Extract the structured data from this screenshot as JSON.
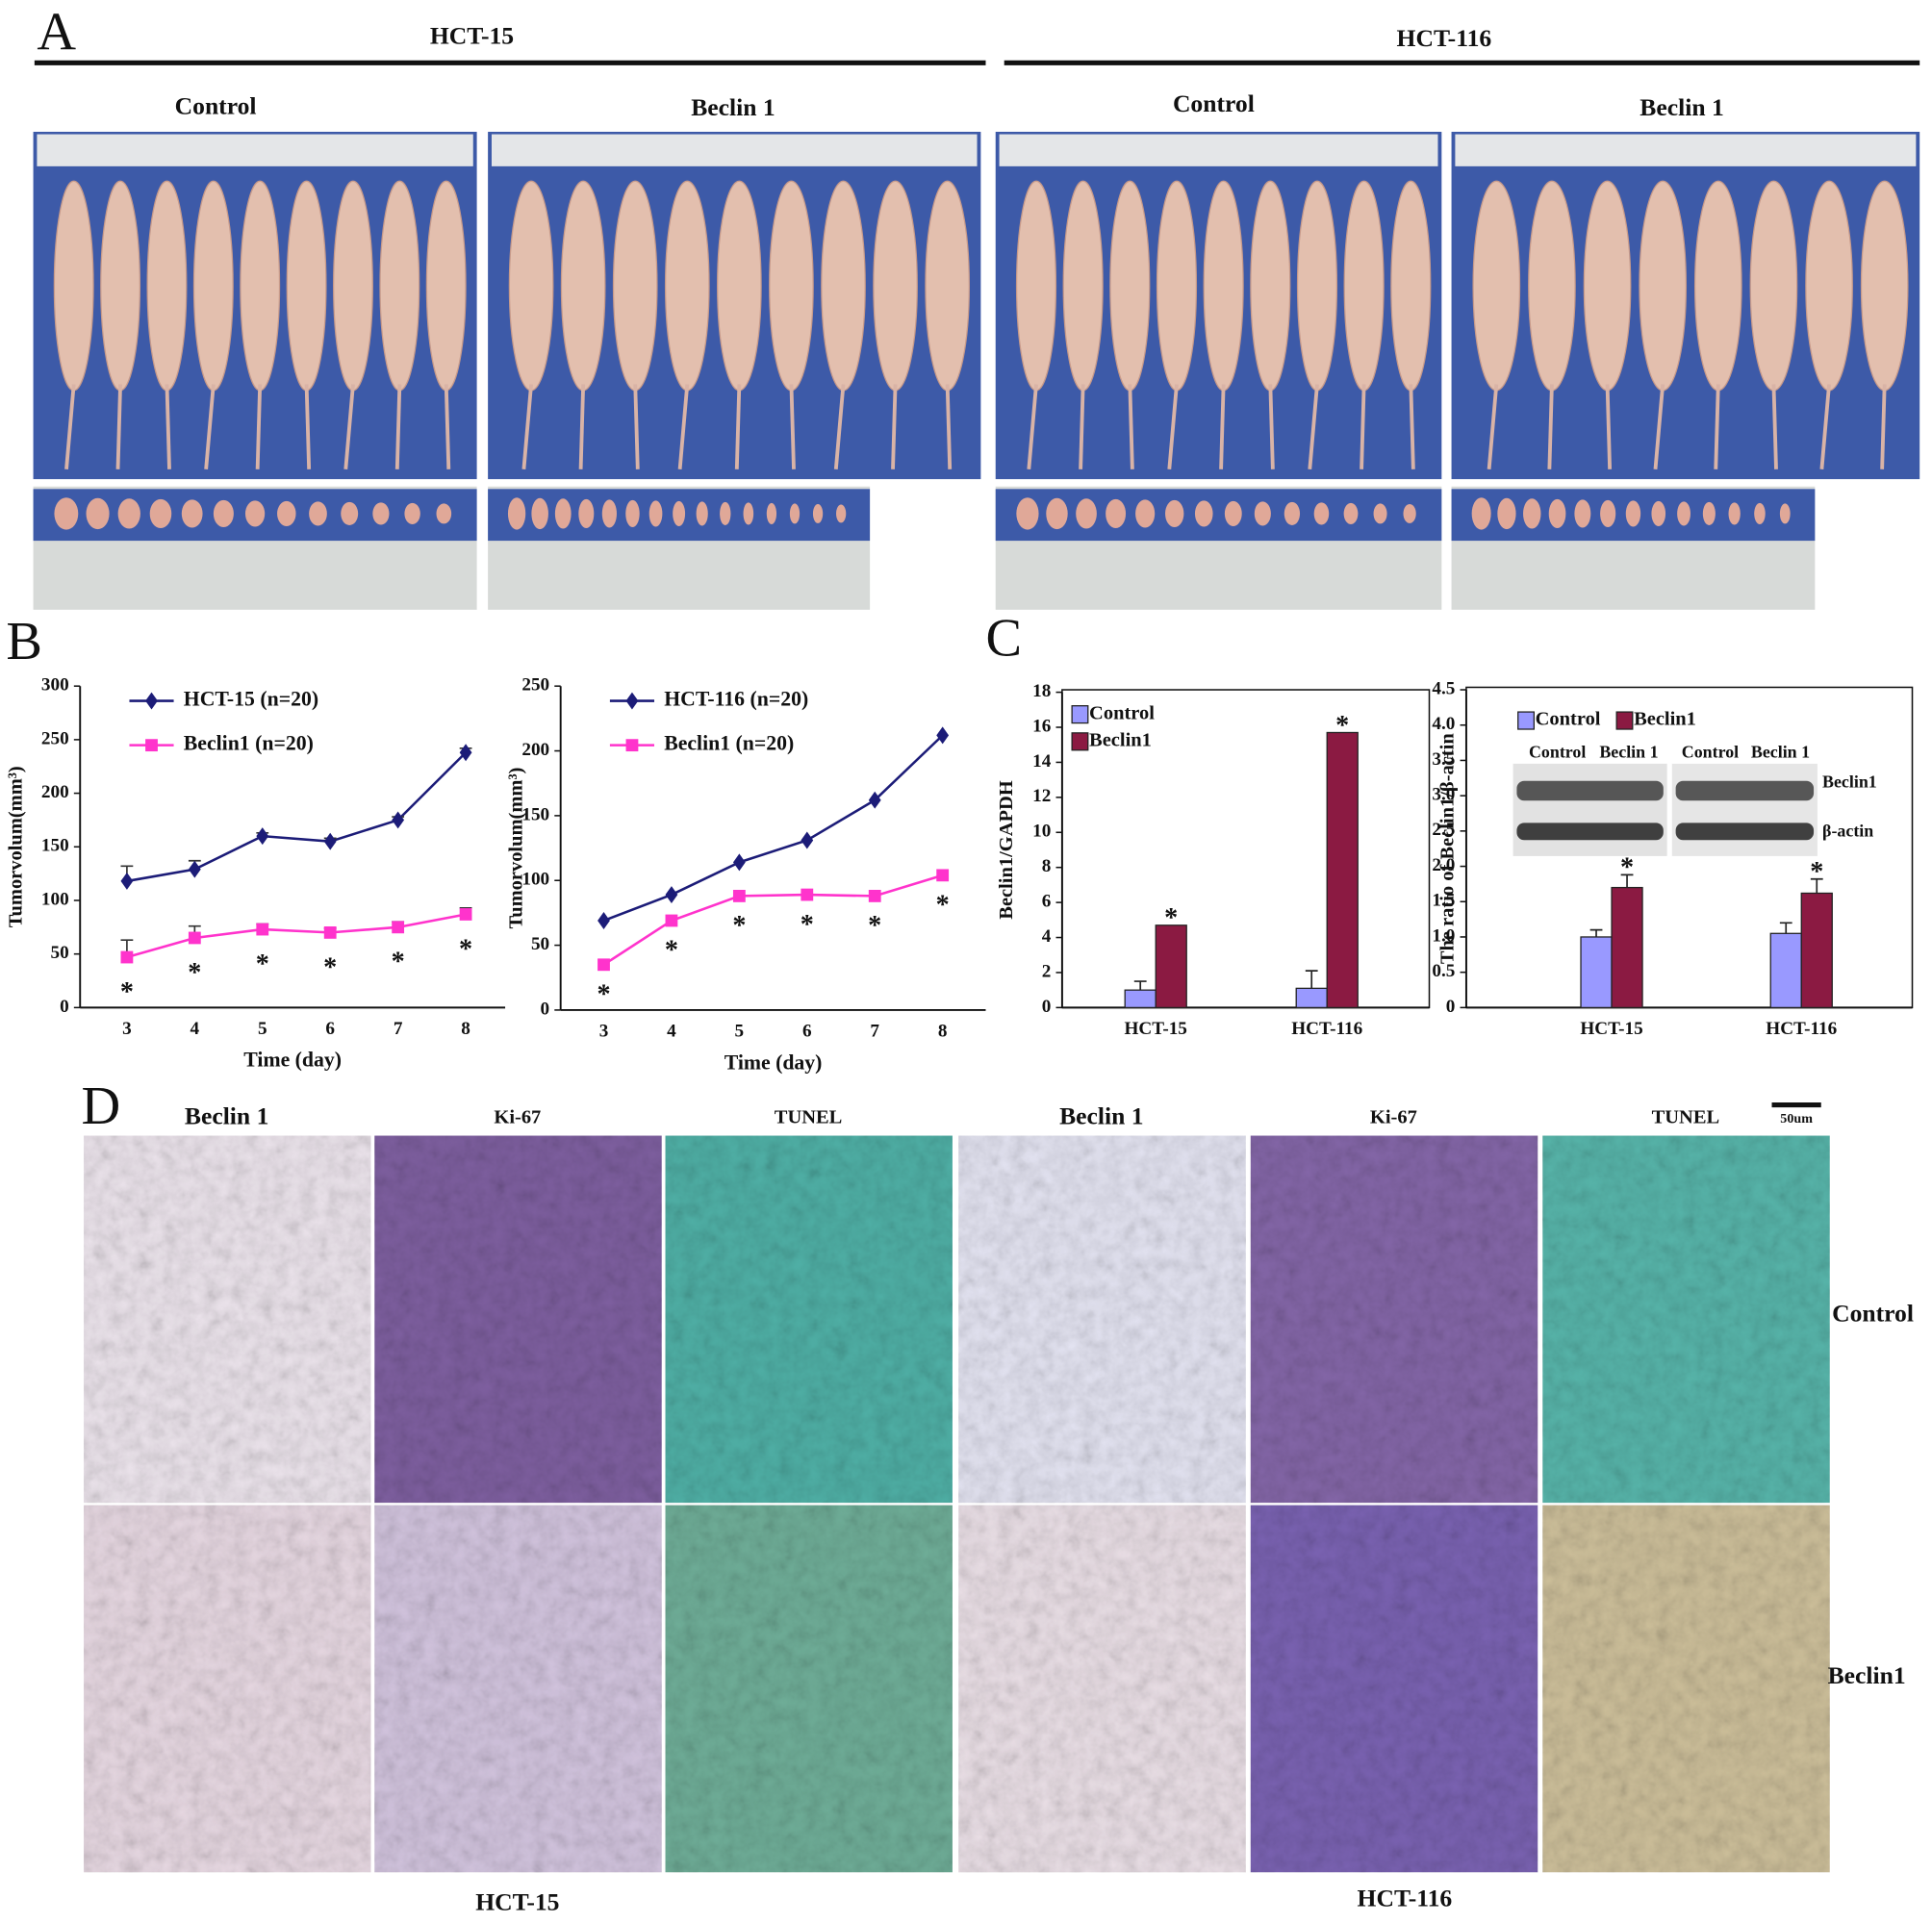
{
  "panel_a": {
    "label": "A",
    "groups": [
      {
        "title": "HCT-15",
        "conditions": [
          "Control",
          "Beclin 1"
        ]
      },
      {
        "title": "HCT-116",
        "conditions": [
          "Control",
          "Beclin 1"
        ]
      }
    ]
  },
  "panel_b": {
    "label": "B"
  },
  "panel_c": {
    "label": "C"
  },
  "panel_d": {
    "label": "D",
    "columns": [
      "Beclin 1",
      "Ki-67",
      "TUNEL",
      "Beclin 1",
      "Ki-67",
      "TUNEL"
    ],
    "rows": [
      "Control",
      "Beclin1"
    ],
    "cell_lines": [
      "HCT-15",
      "HCT-116"
    ],
    "scale_bar": "50um"
  },
  "chart_data": [
    {
      "type": "line",
      "categories": [
        "3",
        "4",
        "5",
        "6",
        "7",
        "8"
      ],
      "x_label": "Time (day)",
      "y_label": "Tumorvolum(mm³)",
      "ylim": [
        0,
        300
      ],
      "yticks": [
        0,
        50,
        100,
        150,
        200,
        250,
        300
      ],
      "legend": "upper left",
      "series": [
        {
          "name": "HCT-15 (n=20)",
          "color": "#1c1c78",
          "marker": "diamond",
          "values": [
            118,
            129,
            160,
            155,
            175,
            238
          ],
          "errors": [
            14,
            8,
            3,
            3,
            3,
            4
          ]
        },
        {
          "name": "Beclin1 (n=20)",
          "color": "#ff33cc",
          "marker": "square",
          "values": [
            47,
            65,
            73,
            70,
            75,
            87
          ],
          "errors": [
            16,
            11,
            5,
            4,
            5,
            6
          ],
          "point_labels": [
            "*",
            "*",
            "*",
            "*",
            "*",
            "*"
          ]
        }
      ]
    },
    {
      "type": "line",
      "categories": [
        "3",
        "4",
        "5",
        "6",
        "7",
        "8"
      ],
      "x_label": "Time (day)",
      "y_label": "Tumorvolum(mm³)",
      "ylim": [
        0,
        250
      ],
      "yticks": [
        0,
        50,
        100,
        150,
        200,
        250
      ],
      "legend": "upper left",
      "series": [
        {
          "name": "HCT-116 (n=20)",
          "color": "#1c1c78",
          "marker": "diamond",
          "values": [
            69,
            89,
            114,
            131,
            162,
            212
          ]
        },
        {
          "name": "Beclin1 (n=20)",
          "color": "#ff33cc",
          "marker": "square",
          "values": [
            35,
            69,
            88,
            89,
            88,
            104
          ],
          "point_labels": [
            "*",
            "*",
            "*",
            "*",
            "*",
            "*"
          ]
        }
      ]
    },
    {
      "type": "bar",
      "categories": [
        "HCT-15",
        "HCT-116"
      ],
      "y_label": "Beclin1/GAPDH",
      "ylim": [
        0,
        18
      ],
      "yticks": [
        0,
        2,
        4,
        6,
        8,
        10,
        12,
        14,
        16,
        18
      ],
      "legend": "upper left",
      "frame": true,
      "series": [
        {
          "name": "Control",
          "color": "#9999ff",
          "values": [
            1.0,
            1.1
          ],
          "errors": [
            0.5,
            1.0
          ]
        },
        {
          "name": "Beclin1",
          "color": "#8b1a42",
          "values": [
            4.7,
            15.7
          ],
          "point_labels": [
            "*",
            "*"
          ]
        }
      ]
    },
    {
      "type": "bar",
      "categories": [
        "HCT-15",
        "HCT-116"
      ],
      "y_label": "The ratio of Beclin1/β-actin",
      "ylim": [
        0,
        4.5
      ],
      "yticks": [
        0,
        0.5,
        {
          "value": 1,
          "label": "1.0"
        },
        1.5,
        {
          "value": 2,
          "label": "2.0"
        },
        2.5,
        {
          "value": 3,
          "label": "3.0"
        },
        3.5,
        {
          "value": 4,
          "label": "4.0"
        },
        4.5
      ],
      "legend": "upper left",
      "frame": true,
      "blot": {
        "lanes": [
          "Control",
          "Beclin 1",
          "Control",
          "Beclin 1"
        ],
        "bands": [
          "Beclin1",
          "β-actin"
        ]
      },
      "series": [
        {
          "name": "Control",
          "color": "#9999ff",
          "values": [
            1.0,
            1.05
          ],
          "errors": [
            0.1,
            0.15
          ]
        },
        {
          "name": "Beclin1",
          "color": "#8b1a42",
          "values": [
            1.7,
            1.62
          ],
          "errors": [
            0.18,
            0.2
          ],
          "point_labels": [
            "*",
            "*"
          ]
        }
      ]
    }
  ]
}
